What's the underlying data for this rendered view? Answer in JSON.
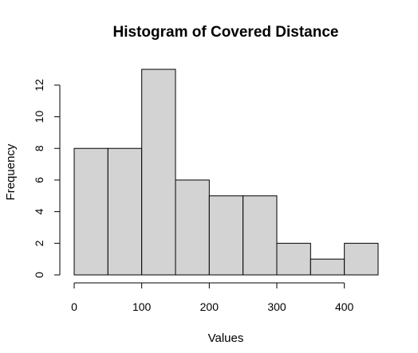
{
  "chart_data": {
    "type": "bar",
    "title": "Histogram of Covered Distance",
    "xlabel": "Values",
    "ylabel": "Frequency",
    "bins": [
      {
        "start": 0,
        "end": 50,
        "count": 8
      },
      {
        "start": 50,
        "end": 100,
        "count": 8
      },
      {
        "start": 100,
        "end": 150,
        "count": 13
      },
      {
        "start": 150,
        "end": 200,
        "count": 6
      },
      {
        "start": 200,
        "end": 250,
        "count": 5
      },
      {
        "start": 250,
        "end": 300,
        "count": 5
      },
      {
        "start": 300,
        "end": 350,
        "count": 2
      },
      {
        "start": 350,
        "end": 400,
        "count": 1
      },
      {
        "start": 400,
        "end": 450,
        "count": 2
      }
    ],
    "xlim": [
      0,
      450
    ],
    "ylim": [
      0,
      13
    ],
    "x_ticks": [
      0,
      100,
      200,
      300,
      400
    ],
    "y_ticks": [
      0,
      2,
      4,
      6,
      8,
      10,
      12
    ],
    "bar_color": "#d3d3d3",
    "grid": false
  }
}
